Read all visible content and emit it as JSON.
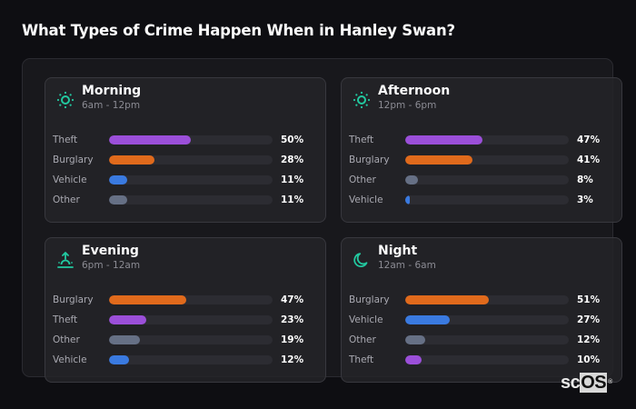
{
  "title": "What Types of Crime Happen When in Hanley Swan?",
  "colors": {
    "accent_icon": "#22c9a0",
    "Theft": "#9b4fd9",
    "Burglary": "#e06a1c",
    "Vehicle": "#3a7ae0",
    "Other": "#667085"
  },
  "cards": [
    {
      "name": "Morning",
      "time": "6am - 12pm",
      "icon": "sun-icon",
      "rows": [
        {
          "label": "Theft",
          "value": 50,
          "pct": "50%"
        },
        {
          "label": "Burglary",
          "value": 28,
          "pct": "28%"
        },
        {
          "label": "Vehicle",
          "value": 11,
          "pct": "11%"
        },
        {
          "label": "Other",
          "value": 11,
          "pct": "11%"
        }
      ]
    },
    {
      "name": "Afternoon",
      "time": "12pm - 6pm",
      "icon": "sun-icon",
      "rows": [
        {
          "label": "Theft",
          "value": 47,
          "pct": "47%"
        },
        {
          "label": "Burglary",
          "value": 41,
          "pct": "41%"
        },
        {
          "label": "Other",
          "value": 8,
          "pct": "8%"
        },
        {
          "label": "Vehicle",
          "value": 3,
          "pct": "3%"
        }
      ]
    },
    {
      "name": "Evening",
      "time": "6pm - 12am",
      "icon": "sunset-icon",
      "rows": [
        {
          "label": "Burglary",
          "value": 47,
          "pct": "47%"
        },
        {
          "label": "Theft",
          "value": 23,
          "pct": "23%"
        },
        {
          "label": "Other",
          "value": 19,
          "pct": "19%"
        },
        {
          "label": "Vehicle",
          "value": 12,
          "pct": "12%"
        }
      ]
    },
    {
      "name": "Night",
      "time": "12am - 6am",
      "icon": "moon-icon",
      "rows": [
        {
          "label": "Burglary",
          "value": 51,
          "pct": "51%"
        },
        {
          "label": "Vehicle",
          "value": 27,
          "pct": "27%"
        },
        {
          "label": "Other",
          "value": 12,
          "pct": "12%"
        },
        {
          "label": "Theft",
          "value": 10,
          "pct": "10%"
        }
      ]
    }
  ],
  "logo": {
    "sc": "sc",
    "os": "OS",
    "reg": "®"
  },
  "chart_data": {
    "type": "bar",
    "title": "What Types of Crime Happen When in Hanley Swan?",
    "orientation": "horizontal",
    "xlim": [
      0,
      100
    ],
    "unit": "%",
    "panels": [
      {
        "title": "Morning",
        "subtitle": "6am - 12pm",
        "categories": [
          "Theft",
          "Burglary",
          "Vehicle",
          "Other"
        ],
        "values": [
          50,
          28,
          11,
          11
        ]
      },
      {
        "title": "Afternoon",
        "subtitle": "12pm - 6pm",
        "categories": [
          "Theft",
          "Burglary",
          "Other",
          "Vehicle"
        ],
        "values": [
          47,
          41,
          8,
          3
        ]
      },
      {
        "title": "Evening",
        "subtitle": "6pm - 12am",
        "categories": [
          "Burglary",
          "Theft",
          "Other",
          "Vehicle"
        ],
        "values": [
          47,
          23,
          19,
          12
        ]
      },
      {
        "title": "Night",
        "subtitle": "12am - 6am",
        "categories": [
          "Burglary",
          "Vehicle",
          "Other",
          "Theft"
        ],
        "values": [
          51,
          27,
          12,
          10
        ]
      }
    ],
    "series_colors": {
      "Theft": "#9b4fd9",
      "Burglary": "#e06a1c",
      "Vehicle": "#3a7ae0",
      "Other": "#667085"
    }
  }
}
